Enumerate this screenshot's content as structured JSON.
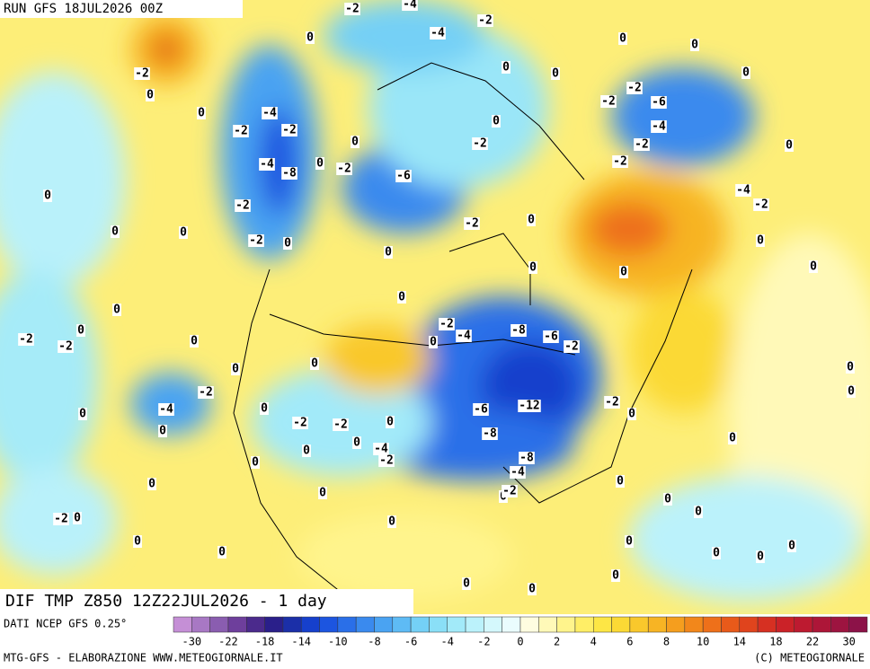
{
  "header": {
    "run": "RUN GFS 18JUL2026 00Z"
  },
  "footer": {
    "title": "DIF TMP Z850 12Z22JUL2026 - 1 day",
    "source": "DATI NCEP GFS 0.25°",
    "credit": "MTG-GFS - ELABORAZIONE WWW.METEOGIORNALE.IT",
    "copyright": "(C) METEOGIORNALE"
  },
  "map": {
    "contour_labels": [
      -2,
      -4,
      -2,
      -4,
      0,
      -2,
      0,
      -4,
      -2,
      -2,
      0,
      -4,
      -8,
      0,
      -2,
      0,
      -6,
      -2,
      0,
      0,
      0,
      0,
      0,
      -2,
      -2,
      -6,
      -4,
      -2,
      -2,
      0,
      0,
      -4,
      -2,
      0,
      0,
      0,
      -2,
      -2,
      0,
      0,
      -2,
      0,
      0,
      0,
      0,
      0,
      0,
      0,
      0,
      -2,
      -2,
      0,
      -2,
      -4,
      0,
      -8,
      -6,
      -2,
      0,
      0,
      -2,
      -4,
      0,
      0,
      0,
      -2,
      -2,
      0,
      -6,
      -12,
      -2,
      0,
      -8,
      -4,
      -2,
      0,
      0,
      0,
      -8,
      -4,
      0,
      -2,
      0,
      0,
      0,
      0,
      -2,
      0,
      0,
      0,
      0,
      0,
      0,
      0,
      0,
      0,
      0,
      0,
      0,
      0,
      0,
      0,
      0
    ]
  },
  "legend": {
    "colors": [
      "#c58fd6",
      "#a878c4",
      "#8a5db0",
      "#6e3f9c",
      "#4b2a8c",
      "#2a1f8a",
      "#1b2fa8",
      "#1640cc",
      "#1c55e0",
      "#2a6fe8",
      "#3a8aee",
      "#4aa3f2",
      "#5ebbf5",
      "#74d0f6",
      "#8adff7",
      "#a2eaf9",
      "#bbf2fb",
      "#d4f8fc",
      "#eafcfe",
      "#fffde0",
      "#fff9b8",
      "#fff48c",
      "#ffee66",
      "#fde645",
      "#fbd935",
      "#f9c82c",
      "#f7b424",
      "#f59e1e",
      "#f2871b",
      "#ee701a",
      "#e85a1a",
      "#e0441d",
      "#d63022",
      "#cb2228",
      "#bd1a30",
      "#ad1638",
      "#9d1440",
      "#8c1248"
    ],
    "ticks": [
      -30,
      -22,
      -18,
      -14,
      -10,
      -8,
      -6,
      -4,
      -2,
      0,
      2,
      4,
      6,
      8,
      10,
      14,
      18,
      22,
      30
    ]
  }
}
